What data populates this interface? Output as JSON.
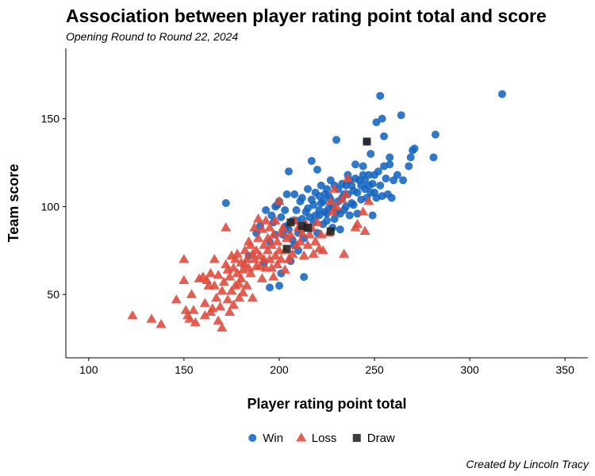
{
  "chart_data": {
    "type": "scatter",
    "title": "Association between player rating point total and score",
    "subtitle": "Opening Round to Round 22, 2024",
    "xlabel": "Player rating point total",
    "ylabel": "Team score",
    "xlim": [
      88,
      362
    ],
    "ylim": [
      14,
      190
    ],
    "xticks": [
      100,
      150,
      200,
      250,
      300,
      350
    ],
    "yticks": [
      50,
      100,
      150
    ],
    "grid": false,
    "legend_position": "bottom",
    "caption": "Created by Lincoln Tracy",
    "series": [
      {
        "name": "Win",
        "shape": "circle",
        "color": "#1565C0",
        "points": [
          [
            172,
            102
          ],
          [
            184,
            72
          ],
          [
            188,
            85
          ],
          [
            190,
            89
          ],
          [
            192,
            68
          ],
          [
            193,
            98
          ],
          [
            195,
            80
          ],
          [
            195,
            54
          ],
          [
            196,
            95
          ],
          [
            197,
            91
          ],
          [
            198,
            100
          ],
          [
            198,
            84
          ],
          [
            199,
            101
          ],
          [
            200,
            103
          ],
          [
            200,
            55
          ],
          [
            201,
            94
          ],
          [
            201,
            62
          ],
          [
            202,
            84
          ],
          [
            203,
            98
          ],
          [
            203,
            88
          ],
          [
            204,
            107
          ],
          [
            204,
            89
          ],
          [
            205,
            120
          ],
          [
            205,
            87
          ],
          [
            206,
            69
          ],
          [
            207,
            92
          ],
          [
            207,
            81
          ],
          [
            208,
            107
          ],
          [
            208,
            78
          ],
          [
            209,
            98
          ],
          [
            209,
            92
          ],
          [
            210,
            85
          ],
          [
            210,
            75
          ],
          [
            211,
            103
          ],
          [
            211,
            87
          ],
          [
            212,
            105
          ],
          [
            212,
            93
          ],
          [
            213,
            82
          ],
          [
            213,
            60
          ],
          [
            214,
            97
          ],
          [
            214,
            88
          ],
          [
            215,
            99
          ],
          [
            215,
            110
          ],
          [
            216,
            87
          ],
          [
            216,
            94
          ],
          [
            217,
            104
          ],
          [
            217,
            126
          ],
          [
            218,
            101
          ],
          [
            218,
            91
          ],
          [
            219,
            95
          ],
          [
            219,
            108
          ],
          [
            220,
            85
          ],
          [
            220,
            121
          ],
          [
            221,
            98
          ],
          [
            221,
            106
          ],
          [
            221,
            95
          ],
          [
            222,
            102
          ],
          [
            222,
            112
          ],
          [
            223,
            103
          ],
          [
            223,
            90
          ],
          [
            224,
            107
          ],
          [
            224,
            97
          ],
          [
            225,
            96
          ],
          [
            225,
            110
          ],
          [
            225,
            92
          ],
          [
            226,
            106
          ],
          [
            226,
            99
          ],
          [
            227,
            104
          ],
          [
            227,
            115
          ],
          [
            228,
            88
          ],
          [
            228,
            100
          ],
          [
            229,
            112
          ],
          [
            229,
            93
          ],
          [
            230,
            138
          ],
          [
            230,
            97
          ],
          [
            231,
            103
          ],
          [
            231,
            110
          ],
          [
            232,
            96
          ],
          [
            232,
            87
          ],
          [
            233,
            105
          ],
          [
            233,
            113
          ],
          [
            234,
            107
          ],
          [
            234,
            98
          ],
          [
            235,
            112
          ],
          [
            235,
            100
          ],
          [
            236,
            118
          ],
          [
            236,
            107
          ],
          [
            237,
            95
          ],
          [
            237,
            115
          ],
          [
            238,
            102
          ],
          [
            238,
            112
          ],
          [
            239,
            109
          ],
          [
            239,
            101
          ],
          [
            240,
            116
          ],
          [
            240,
            124
          ],
          [
            241,
            108
          ],
          [
            241,
            96
          ],
          [
            242,
            115
          ],
          [
            243,
            112
          ],
          [
            243,
            104
          ],
          [
            244,
            123
          ],
          [
            244,
            118
          ],
          [
            245,
            110
          ],
          [
            245,
            115
          ],
          [
            246,
            105
          ],
          [
            246,
            137
          ],
          [
            247,
            118
          ],
          [
            247,
            112
          ],
          [
            248,
            130
          ],
          [
            248,
            108
          ],
          [
            249,
            113
          ],
          [
            249,
            95
          ],
          [
            250,
            118
          ],
          [
            250,
            108
          ],
          [
            251,
            148
          ],
          [
            251,
            105
          ],
          [
            252,
            120
          ],
          [
            253,
            163
          ],
          [
            253,
            112
          ],
          [
            254,
            150
          ],
          [
            254,
            106
          ],
          [
            255,
            140
          ],
          [
            255,
            123
          ],
          [
            256,
            116
          ],
          [
            257,
            107
          ],
          [
            258,
            124
          ],
          [
            258,
            128
          ],
          [
            259,
            105
          ],
          [
            260,
            115
          ],
          [
            262,
            118
          ],
          [
            264,
            152
          ],
          [
            265,
            115
          ],
          [
            268,
            123
          ],
          [
            269,
            128
          ],
          [
            270,
            132
          ],
          [
            271,
            133
          ],
          [
            281,
            128
          ],
          [
            282,
            141
          ],
          [
            317,
            164
          ]
        ]
      },
      {
        "name": "Loss",
        "shape": "triangle",
        "color": "#DE4A3B",
        "points": [
          [
            123,
            38
          ],
          [
            133,
            36
          ],
          [
            138,
            33
          ],
          [
            146,
            47
          ],
          [
            150,
            70
          ],
          [
            150,
            58
          ],
          [
            151,
            41
          ],
          [
            152,
            38
          ],
          [
            153,
            36
          ],
          [
            154,
            50
          ],
          [
            155,
            41
          ],
          [
            156,
            34
          ],
          [
            158,
            59
          ],
          [
            160,
            60
          ],
          [
            161,
            38
          ],
          [
            161,
            45
          ],
          [
            162,
            58
          ],
          [
            163,
            55
          ],
          [
            164,
            62
          ],
          [
            164,
            40
          ],
          [
            165,
            42
          ],
          [
            166,
            70
          ],
          [
            166,
            55
          ],
          [
            167,
            48
          ],
          [
            168,
            61
          ],
          [
            168,
            35
          ],
          [
            169,
            43
          ],
          [
            170,
            52
          ],
          [
            170,
            31
          ],
          [
            171,
            57
          ],
          [
            172,
            67
          ],
          [
            172,
            88
          ],
          [
            173,
            64
          ],
          [
            173,
            47
          ],
          [
            174,
            60
          ],
          [
            174,
            40
          ],
          [
            175,
            72
          ],
          [
            175,
            52
          ],
          [
            176,
            65
          ],
          [
            176,
            44
          ],
          [
            177,
            70
          ],
          [
            177,
            55
          ],
          [
            178,
            73
          ],
          [
            178,
            62
          ],
          [
            179,
            56
          ],
          [
            179,
            48
          ],
          [
            180,
            68
          ],
          [
            180,
            59
          ],
          [
            181,
            64
          ],
          [
            181,
            51
          ],
          [
            182,
            75
          ],
          [
            182,
            67
          ],
          [
            183,
            70
          ],
          [
            183,
            55
          ],
          [
            184,
            80
          ],
          [
            184,
            65
          ],
          [
            185,
            78
          ],
          [
            185,
            62
          ],
          [
            186,
            73
          ],
          [
            186,
            48
          ],
          [
            187,
            70
          ],
          [
            187,
            88
          ],
          [
            188,
            66
          ],
          [
            188,
            75
          ],
          [
            189,
            93
          ],
          [
            189,
            82
          ],
          [
            190,
            72
          ],
          [
            190,
            66
          ],
          [
            191,
            87
          ],
          [
            191,
            59
          ],
          [
            192,
            78
          ],
          [
            192,
            70
          ],
          [
            193,
            65
          ],
          [
            193,
            92
          ],
          [
            194,
            75
          ],
          [
            194,
            82
          ],
          [
            195,
            70
          ],
          [
            195,
            88
          ],
          [
            196,
            78
          ],
          [
            196,
            65
          ],
          [
            197,
            60
          ],
          [
            197,
            84
          ],
          [
            198,
            72
          ],
          [
            198,
            92
          ],
          [
            199,
            80
          ],
          [
            199,
            67
          ],
          [
            200,
            103
          ],
          [
            200,
            75
          ],
          [
            201,
            85
          ],
          [
            201,
            70
          ],
          [
            202,
            88
          ],
          [
            203,
            75
          ],
          [
            203,
            64
          ],
          [
            204,
            82
          ],
          [
            205,
            70
          ],
          [
            206,
            84
          ],
          [
            207,
            73
          ],
          [
            208,
            92
          ],
          [
            209,
            78
          ],
          [
            210,
            88
          ],
          [
            211,
            80
          ],
          [
            212,
            85
          ],
          [
            213,
            72
          ],
          [
            214,
            90
          ],
          [
            215,
            78
          ],
          [
            216,
            84
          ],
          [
            217,
            88
          ],
          [
            218,
            73
          ],
          [
            219,
            80
          ],
          [
            220,
            91
          ],
          [
            221,
            76
          ],
          [
            222,
            84
          ],
          [
            223,
            75
          ],
          [
            226,
            85
          ],
          [
            227,
            103
          ],
          [
            228,
            97
          ],
          [
            229,
            110
          ],
          [
            230,
            100
          ],
          [
            233,
            104
          ],
          [
            234,
            73
          ],
          [
            235,
            107
          ],
          [
            236,
            116
          ],
          [
            240,
            88
          ],
          [
            241,
            90
          ],
          [
            244,
            97
          ],
          [
            245,
            86
          ],
          [
            247,
            103
          ]
        ]
      },
      {
        "name": "Draw",
        "shape": "square",
        "color": "#222222",
        "points": [
          [
            204,
            76
          ],
          [
            206,
            91
          ],
          [
            212,
            89
          ],
          [
            215,
            88
          ],
          [
            227,
            86
          ],
          [
            246,
            137
          ]
        ]
      }
    ]
  }
}
